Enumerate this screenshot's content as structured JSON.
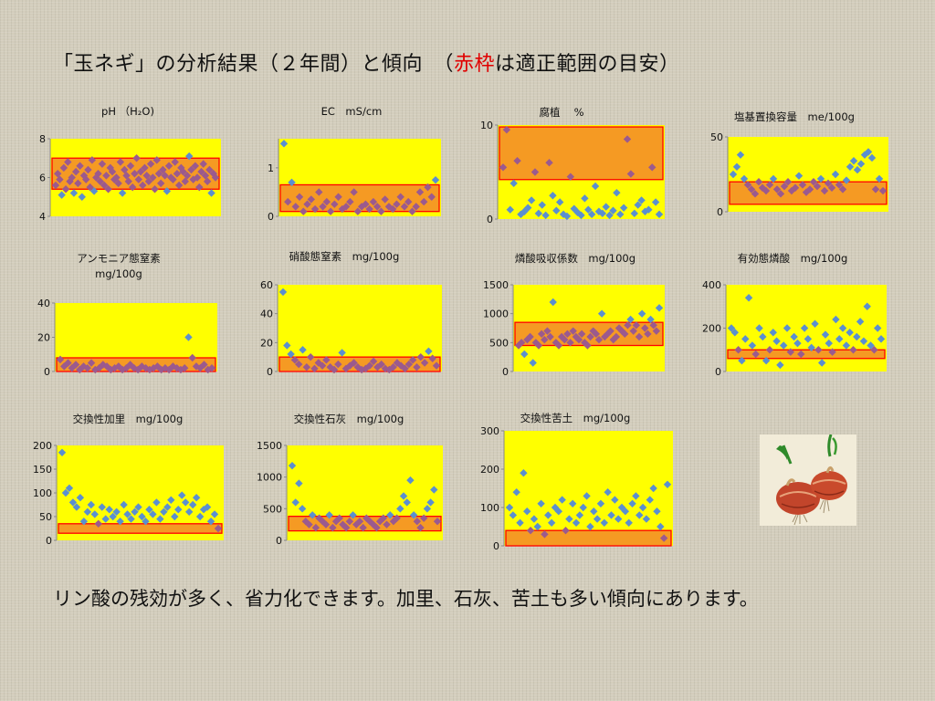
{
  "slide": {
    "title_pre": "「玉ネギ」の分析結果（２年間）と傾向　（",
    "title_red": "赤枠",
    "title_post": "は適正範囲の目安）",
    "footer": "リン酸の残効が多く、省力化できます。加里、石灰、苦土も多い傾向にあります。",
    "colors": {
      "plot_bg": "#ffff00",
      "range_fill": "#f59a23",
      "range_border": "#ff0000",
      "marker": "#5b8fcf",
      "overlap": "#9b5a8e"
    }
  },
  "chart_data": [
    {
      "id": "ph",
      "type": "scatter",
      "title_lines": [
        "pH （H₂O)"
      ],
      "ylim": [
        4,
        8
      ],
      "yticks": [
        4,
        6,
        8
      ],
      "range": [
        5.4,
        7.0
      ],
      "values": [
        5.6,
        6.2,
        5.9,
        5.1,
        6.5,
        5.4,
        6.8,
        5.8,
        6.0,
        5.2,
        6.3,
        5.7,
        6.6,
        5.0,
        6.1,
        5.9,
        6.4,
        5.5,
        6.9,
        5.3,
        6.0,
        6.2,
        5.8,
        6.7,
        5.6,
        6.1,
        5.4,
        6.5,
        6.3,
        5.9,
        6.0,
        5.7,
        6.8,
        5.2,
        6.4,
        6.1,
        5.8,
        6.6,
        5.5,
        6.2,
        7.0,
        5.9,
        6.3,
        5.6,
        6.5,
        6.1,
        5.8,
        6.7,
        6.0,
        5.4,
        6.9,
        6.2,
        5.7,
        6.4,
        6.1,
        5.3,
        6.6,
        6.0,
        5.9,
        6.8,
        6.2,
        5.6,
        6.5,
        6.3,
        5.8,
        6.1,
        7.1,
        6.4,
        5.9,
        6.6,
        6.0,
        5.5,
        6.3,
        6.7,
        6.1,
        5.8,
        6.4,
        5.2,
        6.2,
        6.0
      ]
    },
    {
      "id": "ec",
      "type": "scatter",
      "title_lines": [
        "EC　mS/cm"
      ],
      "ylim": [
        0,
        1.6
      ],
      "yticks": [
        0,
        1
      ],
      "range": [
        0.1,
        0.65
      ],
      "values": [
        1.5,
        0.3,
        0.7,
        0.2,
        0.4,
        0.1,
        0.25,
        0.35,
        0.15,
        0.5,
        0.2,
        0.3,
        0.1,
        0.25,
        0.4,
        0.15,
        0.2,
        0.3,
        0.5,
        0.1,
        0.2,
        0.25,
        0.15,
        0.3,
        0.2,
        0.1,
        0.35,
        0.2,
        0.15,
        0.25,
        0.4,
        0.2,
        0.3,
        0.1,
        0.2,
        0.5,
        0.3,
        0.6,
        0.4,
        0.75
      ]
    },
    {
      "id": "humus",
      "type": "scatter",
      "title_lines": [
        "腐植　 %"
      ],
      "ylim": [
        0,
        10
      ],
      "yticks": [
        0,
        10
      ],
      "range": [
        4.2,
        9.8
      ],
      "values": [
        5.5,
        9.5,
        1.0,
        3.8,
        6.2,
        0.5,
        0.8,
        1.2,
        2.0,
        5.0,
        0.6,
        1.5,
        0.4,
        6.0,
        2.5,
        0.9,
        1.8,
        0.5,
        0.3,
        4.5,
        1.1,
        0.7,
        0.4,
        2.2,
        1.0,
        0.5,
        3.5,
        0.8,
        0.6,
        1.3,
        0.4,
        0.9,
        2.8,
        0.5,
        1.2,
        8.5,
        4.8,
        0.6,
        1.5,
        2.0,
        0.8,
        1.0,
        5.5,
        1.8,
        0.5
      ]
    },
    {
      "id": "cec",
      "type": "scatter",
      "title_lines": [
        "塩基置換容量　me/100g"
      ],
      "ylim": [
        0,
        50
      ],
      "yticks": [
        0,
        50
      ],
      "range": [
        5,
        20
      ],
      "values": [
        25,
        30,
        38,
        22,
        18,
        15,
        12,
        20,
        16,
        14,
        18,
        22,
        15,
        12,
        17,
        20,
        14,
        16,
        24,
        18,
        13,
        15,
        20,
        17,
        22,
        14,
        19,
        16,
        25,
        18,
        15,
        21,
        30,
        34,
        28,
        32,
        38,
        40,
        36,
        15,
        22,
        14
      ]
    },
    {
      "id": "nh4",
      "type": "scatter",
      "title_lines": [
        "アンモニア態窒素",
        "mg/100g"
      ],
      "ylim": [
        0,
        40
      ],
      "yticks": [
        0,
        20,
        40
      ],
      "range": [
        0,
        8
      ],
      "values": [
        7,
        3,
        5,
        2,
        4,
        1,
        3,
        2,
        5,
        1,
        2,
        4,
        3,
        1,
        2,
        3,
        1,
        2,
        4,
        2,
        1,
        3,
        2,
        1,
        2,
        3,
        1,
        2,
        1,
        3,
        2,
        1,
        2,
        20,
        8,
        3,
        2,
        4,
        1,
        2
      ]
    },
    {
      "id": "no3",
      "type": "scatter",
      "title_lines": [
        "硝酸態窒素　mg/100g"
      ],
      "ylim": [
        0,
        60
      ],
      "yticks": [
        0,
        20,
        40,
        60
      ],
      "range": [
        0,
        10
      ],
      "values": [
        55,
        18,
        12,
        8,
        5,
        15,
        3,
        10,
        2,
        6,
        4,
        8,
        3,
        1,
        5,
        13,
        2,
        4,
        6,
        3,
        1,
        2,
        4,
        7,
        3,
        5,
        2,
        1,
        3,
        6,
        4,
        2,
        5,
        8,
        3,
        10,
        6,
        14,
        9,
        4
      ]
    },
    {
      "id": "pac",
      "type": "scatter",
      "title_lines": [
        "燐酸吸収係数　mg/100g"
      ],
      "ylim": [
        0,
        1500
      ],
      "yticks": [
        0,
        500,
        1000,
        1500
      ],
      "range": [
        450,
        850
      ],
      "values": [
        450,
        500,
        300,
        550,
        600,
        150,
        500,
        450,
        650,
        550,
        700,
        600,
        1200,
        500,
        450,
        600,
        550,
        650,
        500,
        700,
        600,
        550,
        650,
        500,
        450,
        600,
        700,
        650,
        550,
        1000,
        600,
        650,
        700,
        550,
        600,
        750,
        700,
        650,
        800,
        900,
        700,
        800,
        600,
        1000,
        750,
        650,
        900,
        800,
        700,
        1100
      ]
    },
    {
      "id": "avp",
      "type": "scatter",
      "title_lines": [
        "有効態燐酸　mg/100g"
      ],
      "ylim": [
        0,
        400
      ],
      "yticks": [
        0,
        200,
        400
      ],
      "range": [
        60,
        100
      ],
      "values": [
        200,
        180,
        100,
        50,
        150,
        340,
        120,
        80,
        200,
        160,
        50,
        100,
        180,
        140,
        30,
        120,
        200,
        90,
        160,
        130,
        80,
        200,
        150,
        110,
        220,
        100,
        40,
        170,
        130,
        90,
        240,
        150,
        200,
        120,
        180,
        100,
        160,
        230,
        140,
        300,
        120,
        100,
        200,
        150
      ]
    },
    {
      "id": "k",
      "type": "scatter",
      "title_lines": [
        "交換性加里　mg/100g"
      ],
      "ylim": [
        0,
        200
      ],
      "yticks": [
        0,
        50,
        100,
        150,
        200
      ],
      "range": [
        15,
        35
      ],
      "values": [
        185,
        100,
        110,
        80,
        70,
        90,
        40,
        60,
        75,
        55,
        35,
        70,
        45,
        65,
        50,
        60,
        40,
        75,
        55,
        45,
        60,
        70,
        50,
        40,
        65,
        55,
        80,
        45,
        60,
        70,
        85,
        50,
        65,
        95,
        80,
        60,
        75,
        90,
        50,
        65,
        70,
        40,
        55,
        25
      ]
    },
    {
      "id": "ca",
      "type": "scatter",
      "title_lines": [
        "交換性石灰　mg/100g"
      ],
      "ylim": [
        0,
        1500
      ],
      "yticks": [
        0,
        500,
        1000,
        1500
      ],
      "range": [
        150,
        380
      ],
      "values": [
        1180,
        600,
        900,
        500,
        300,
        250,
        400,
        200,
        350,
        300,
        250,
        400,
        200,
        300,
        350,
        250,
        200,
        300,
        400,
        250,
        300,
        200,
        350,
        300,
        250,
        200,
        300,
        350,
        250,
        400,
        300,
        350,
        500,
        700,
        600,
        950,
        400,
        300,
        200,
        350,
        500,
        600,
        800,
        300
      ]
    },
    {
      "id": "mg",
      "type": "scatter",
      "title_lines": [
        "交換性苦土　mg/100g"
      ],
      "ylim": [
        0,
        300
      ],
      "yticks": [
        0,
        100,
        200,
        300
      ],
      "range": [
        0,
        40
      ],
      "values": [
        100,
        80,
        140,
        60,
        190,
        90,
        40,
        70,
        50,
        110,
        30,
        80,
        60,
        100,
        90,
        120,
        40,
        70,
        110,
        60,
        80,
        100,
        130,
        50,
        90,
        70,
        110,
        60,
        140,
        80,
        120,
        70,
        100,
        90,
        60,
        110,
        130,
        80,
        100,
        70,
        120,
        150,
        90,
        50,
        20,
        160
      ]
    }
  ]
}
